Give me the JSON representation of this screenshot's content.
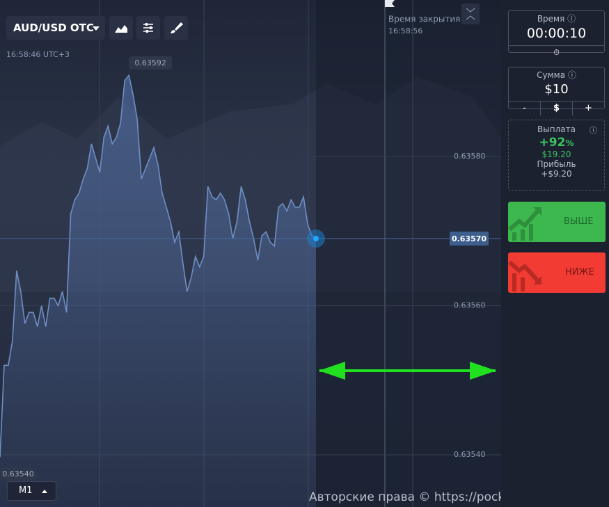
{
  "header": {
    "asset": "AUD/USD OTC",
    "time": "16:58:46 UTC+3"
  },
  "expiry": {
    "label": "Время закрытия",
    "time": "16:58:56"
  },
  "chart": {
    "ylim": [
      0.63533,
      0.63601
    ],
    "yticks": [
      {
        "value": 0.6358,
        "label": "0.63580"
      },
      {
        "value": 0.6356,
        "label": "0.63560"
      },
      {
        "value": 0.6354,
        "label": "0.63540"
      }
    ],
    "max_label": 0.63592,
    "min_label": {
      "value": 0.6354,
      "label": "0.63540"
    },
    "current_label": {
      "value": 0.6357,
      "label": "0.63570"
    },
    "color": "#6f8fc4",
    "values": [
      0.635397,
      0.63552,
      0.63552,
      0.635553,
      0.635647,
      0.635619,
      0.635576,
      0.635591,
      0.635591,
      0.635572,
      0.6356,
      0.635572,
      0.63561,
      0.63561,
      0.6356,
      0.635619,
      0.635591,
      0.635723,
      0.635742,
      0.635751,
      0.63577,
      0.635784,
      0.635817,
      0.635798,
      0.635779,
      0.635826,
      0.635841,
      0.635817,
      0.635826,
      0.635845,
      0.635902,
      0.635909,
      0.635883,
      0.63585,
      0.63577,
      0.635784,
      0.635798,
      0.635812,
      0.635789,
      0.635751,
      0.635732,
      0.635713,
      0.635685,
      0.635699,
      0.635657,
      0.635619,
      0.635638,
      0.635666,
      0.635652,
      0.635666,
      0.63576,
      0.635746,
      0.635742,
      0.635751,
      0.635742,
      0.635723,
      0.63569,
      0.635713,
      0.63576,
      0.635742,
      0.635713,
      0.63569,
      0.635661,
      0.635694,
      0.635699,
      0.635685,
      0.63568,
      0.635732,
      0.635737,
      0.635727,
      0.635742,
      0.635732,
      0.635732,
      0.635746,
      0.635709,
      0.635694,
      0.63569
    ]
  },
  "timeframe": "M1",
  "watermark": "Авторские права © https://pocketoption.ru",
  "panel": {
    "time": {
      "label": "Время",
      "value": "00:00:10"
    },
    "amount": {
      "label": "Сумма",
      "value": "$10",
      "minus": "-",
      "currency": "$",
      "plus": "+"
    },
    "payout": {
      "label": "Выплата",
      "percent": "+92",
      "percent_sign": "%",
      "amount": "$19.20",
      "profit_label": "Прибыль",
      "profit": "+$9.20"
    },
    "up": "ВЫШЕ",
    "down": "НИЖЕ"
  }
}
